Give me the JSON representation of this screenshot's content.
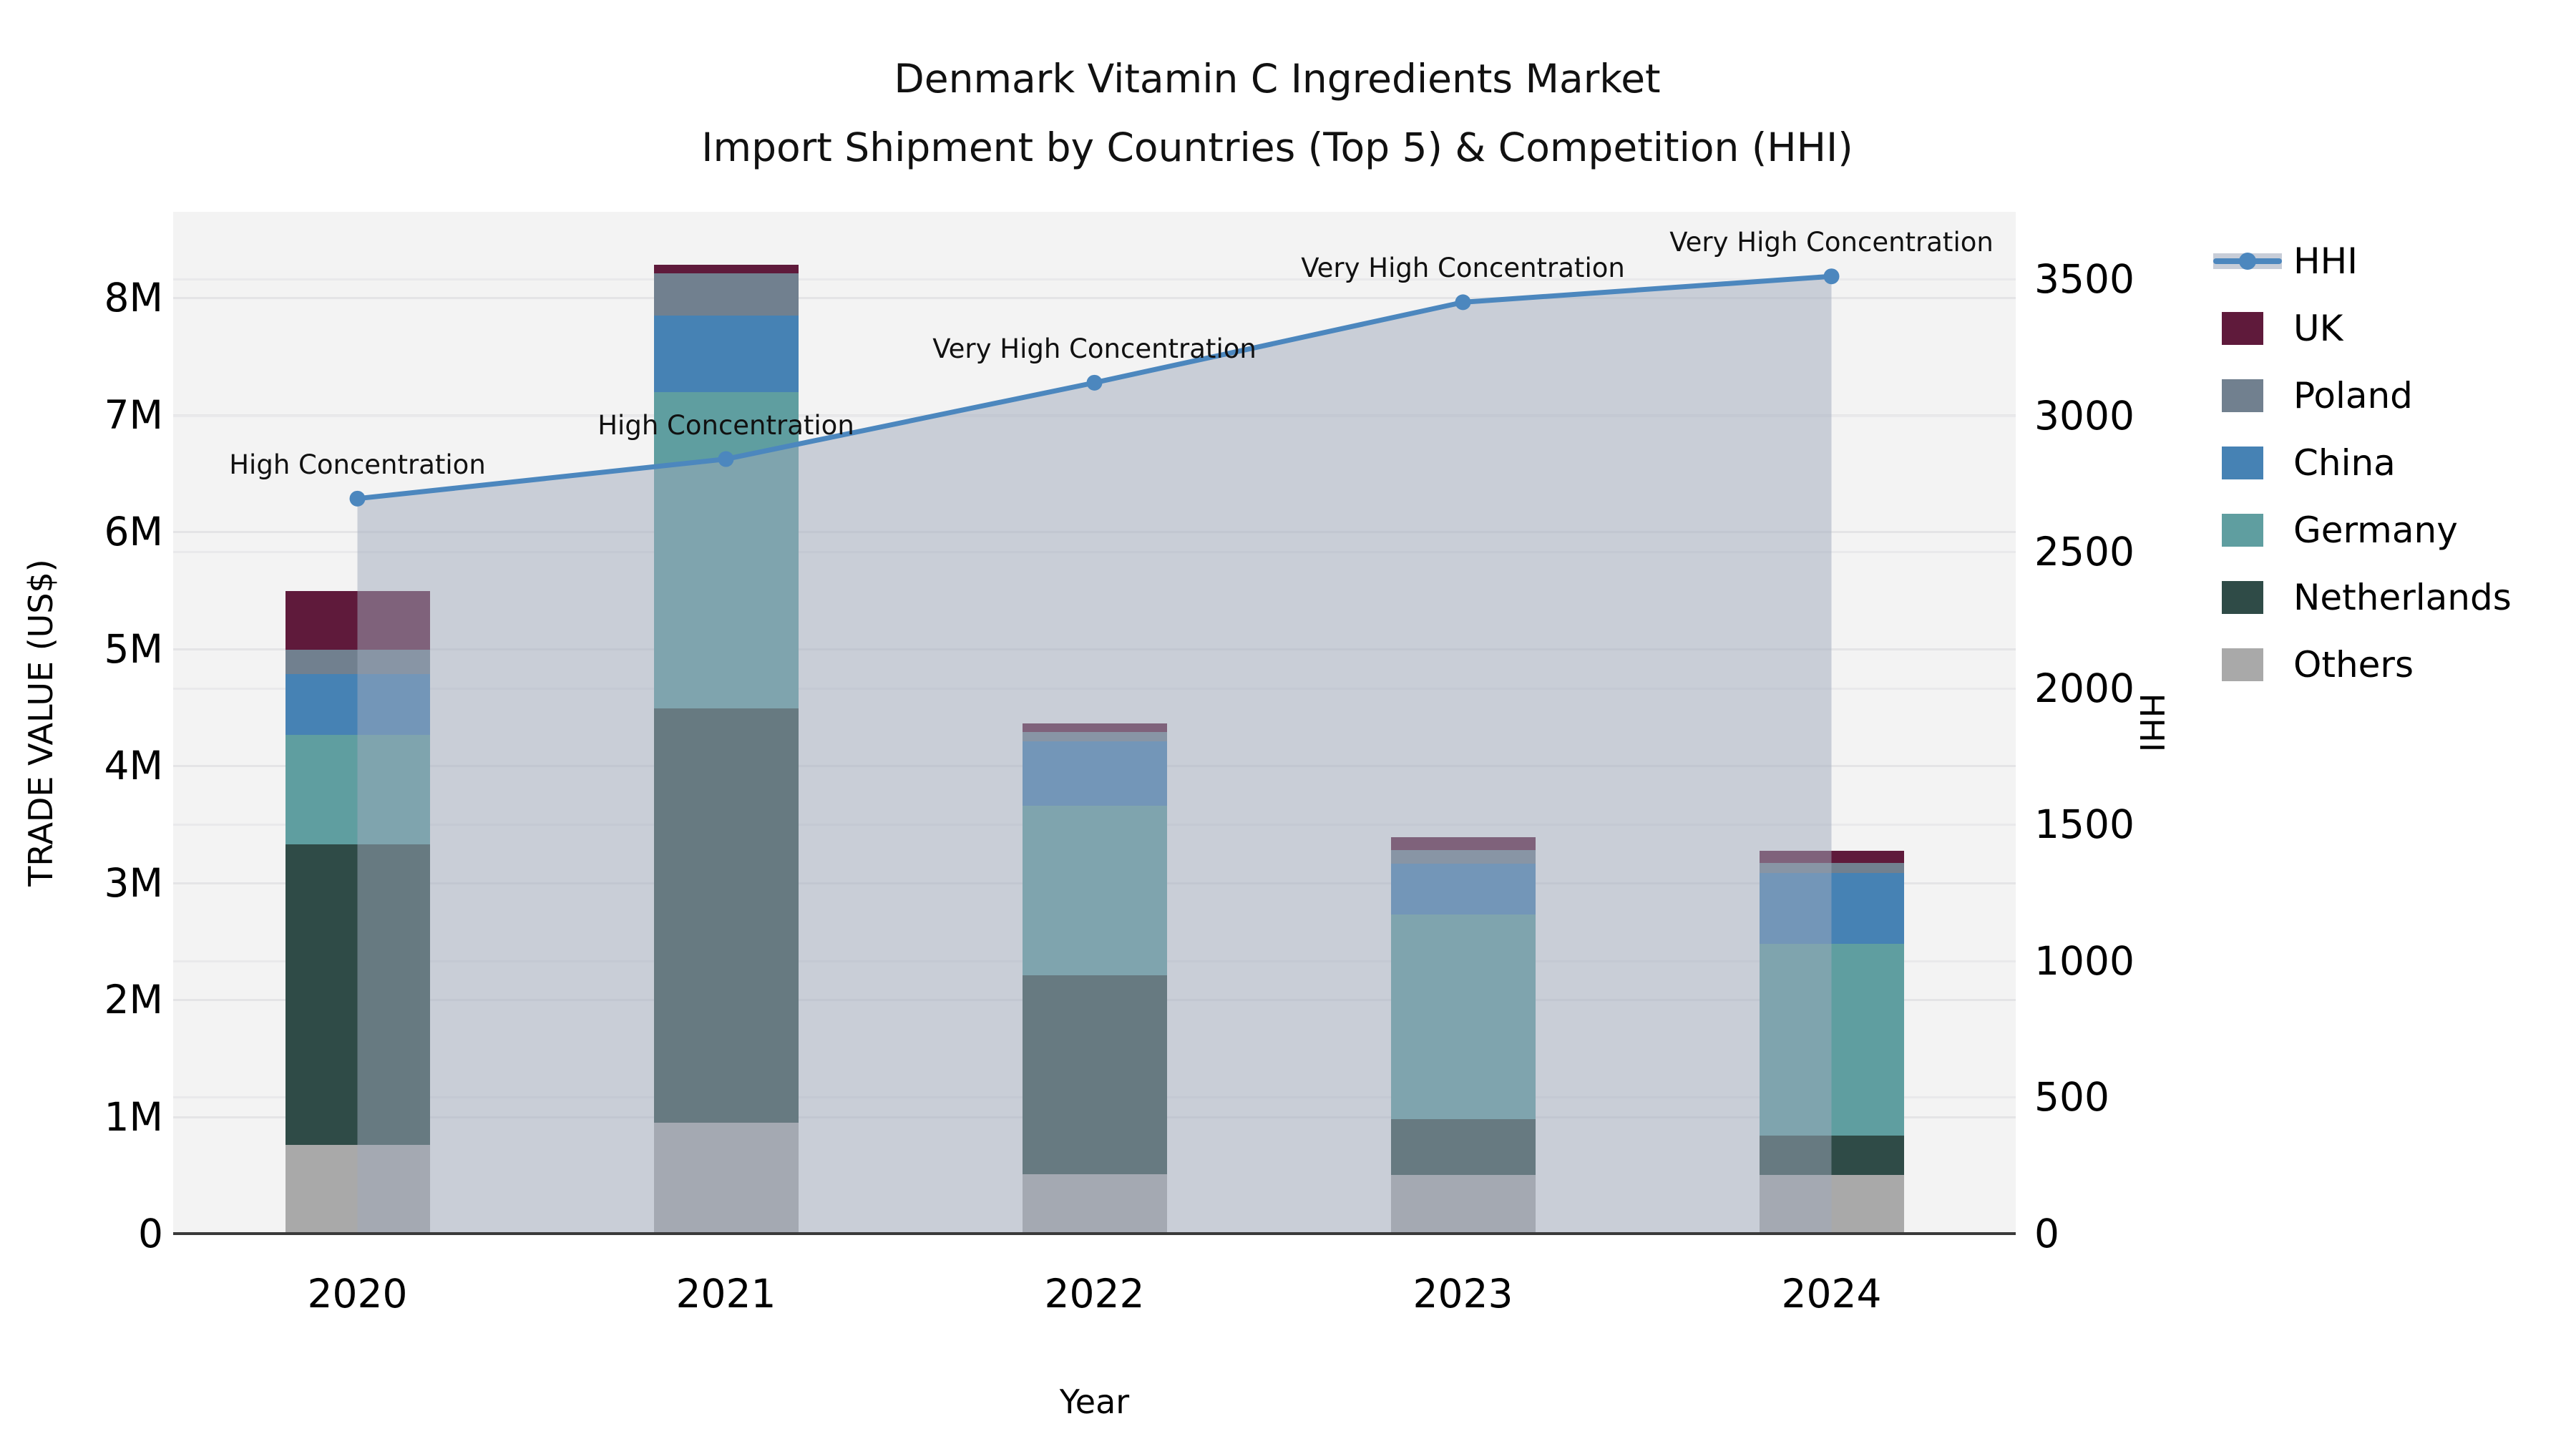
{
  "title": {
    "line1": "Denmark Vitamin C Ingredients Market",
    "line2": "Import Shipment by Countries (Top 5) & Competition (HHI)"
  },
  "axes": {
    "x_label": "Year",
    "y_left_label": "TRADE VALUE (US$)",
    "y_right_label": "HHI",
    "y_left_ticks": [
      "0",
      "1M",
      "2M",
      "3M",
      "4M",
      "5M",
      "6M",
      "7M",
      "8M"
    ],
    "y_right_ticks": [
      "0",
      "500",
      "1000",
      "1500",
      "2000",
      "2500",
      "3000",
      "3500"
    ]
  },
  "legend": {
    "items": [
      "HHI",
      "UK",
      "Poland",
      "China",
      "Germany",
      "Netherlands",
      "Others"
    ]
  },
  "colors": {
    "UK": "#5f1a3b",
    "Poland": "#71808f",
    "China": "#4682b4",
    "Germany": "#5f9ea0",
    "Netherlands": "#2f4b47",
    "Others": "#a9a9a9",
    "hhi_line": "#4c87be",
    "hhi_fill": "rgba(160,170,188,0.5)",
    "plot_bg": "#f3f3f3"
  },
  "chart_data": {
    "type": "bar",
    "subtype": "stacked-bars-with-line",
    "title": "Denmark Vitamin C Ingredients Market — Import Shipment by Countries (Top 5) & Competition (HHI)",
    "xlabel": "Year",
    "ylabel_left": "TRADE VALUE (US$)",
    "ylabel_right": "HHI",
    "categories": [
      "2020",
      "2021",
      "2022",
      "2023",
      "2024"
    ],
    "value_unit": "millions US$",
    "ylim_left_m": [
      0,
      8.73
    ],
    "ylim_right": [
      0,
      3500
    ],
    "grid": "horizontal, both axes",
    "legend_position": "upper right, outside plot",
    "series": [
      {
        "name": "Others",
        "values": [
          0.76,
          0.95,
          0.51,
          0.5,
          0.5
        ]
      },
      {
        "name": "Netherlands",
        "values": [
          2.57,
          3.54,
          1.7,
          0.48,
          0.34
        ]
      },
      {
        "name": "Germany",
        "values": [
          0.93,
          2.7,
          1.45,
          1.75,
          1.64
        ]
      },
      {
        "name": "China",
        "values": [
          0.52,
          0.66,
          0.55,
          0.43,
          0.6
        ]
      },
      {
        "name": "Poland",
        "values": [
          0.21,
          0.36,
          0.08,
          0.12,
          0.09
        ]
      },
      {
        "name": "UK",
        "values": [
          0.5,
          0.07,
          0.07,
          0.11,
          0.1
        ]
      }
    ],
    "line_series": {
      "name": "HHI",
      "values": [
        2695,
        2840,
        3120,
        3415,
        3510
      ],
      "area_fill_under_line": true
    },
    "point_annotations": [
      "High Concentration",
      "High Concentration",
      "Very High Concentration",
      "Very High Concentration",
      "Very High Concentration"
    ]
  }
}
